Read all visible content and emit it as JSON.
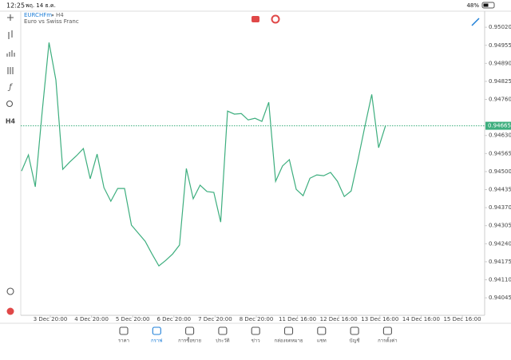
{
  "status_bar": {
    "time": "12:25",
    "date": "พฤ. 14 ธ.ค.",
    "battery": "48%"
  },
  "chart_header": {
    "symbol": "EURCHFm",
    "timeframe": "H4",
    "description": "Euro vs Swiss Franc"
  },
  "toolbar": {
    "timeframe": "H4"
  },
  "chart_data": {
    "type": "line",
    "color": "#3dae7e",
    "values": [
      0.94502,
      0.9456,
      0.94445,
      0.94715,
      0.94965,
      0.9483,
      0.94508,
      0.94534,
      0.94557,
      0.94583,
      0.94474,
      0.94563,
      0.94442,
      0.94393,
      0.94439,
      0.94439,
      0.94307,
      0.94278,
      0.94249,
      0.94203,
      0.9416,
      0.9418,
      0.94203,
      0.94235,
      0.94511,
      0.94402,
      0.94451,
      0.94428,
      0.94425,
      0.94318,
      0.94718,
      0.94707,
      0.94709,
      0.94686,
      0.94692,
      0.94681,
      0.9475,
      0.94465,
      0.9452,
      0.94543,
      0.94436,
      0.94413,
      0.94476,
      0.94488,
      0.94485,
      0.94497,
      0.94465,
      0.9441,
      0.9443,
      0.94543,
      0.94663,
      0.94778,
      0.94586,
      0.94665
    ],
    "x_labels": [
      "3 Dec 20:00",
      "4 Dec 20:00",
      "5 Dec 20:00",
      "6 Dec 20:00",
      "7 Dec 20:00",
      "8 Dec 20:00",
      "11 Dec 16:00",
      "12 Dec 16:00",
      "13 Dec 16:00",
      "14 Dec 16:00",
      "15 Dec 16:00"
    ],
    "ylim": [
      0.93982,
      0.95078
    ],
    "yticks": [
      {
        "value": 0.9502,
        "label": "0.95020"
      },
      0.94955,
      {
        "value": 0.9489,
        "label": "0.94890"
      },
      0.94825,
      {
        "value": 0.9476,
        "label": "0.94760"
      },
      {
        "value": 0.9463,
        "label": "0.94630"
      },
      0.94565,
      {
        "value": 0.945,
        "label": "0.94500"
      },
      0.94435,
      {
        "value": 0.9437,
        "label": "0.94370"
      },
      0.94305,
      {
        "value": 0.9424,
        "label": "0.94240"
      },
      0.94175,
      {
        "value": 0.9411,
        "label": "0.94110"
      },
      0.94045
    ],
    "current_price": 0.94665
  },
  "nav": [
    "ราคา",
    "กราฟ",
    "การซื้อขาย",
    "ประวัติ",
    "ข่าว",
    "กล่องจดหมาย",
    "แชท",
    "บัญชี",
    "การตั้งค่า"
  ]
}
